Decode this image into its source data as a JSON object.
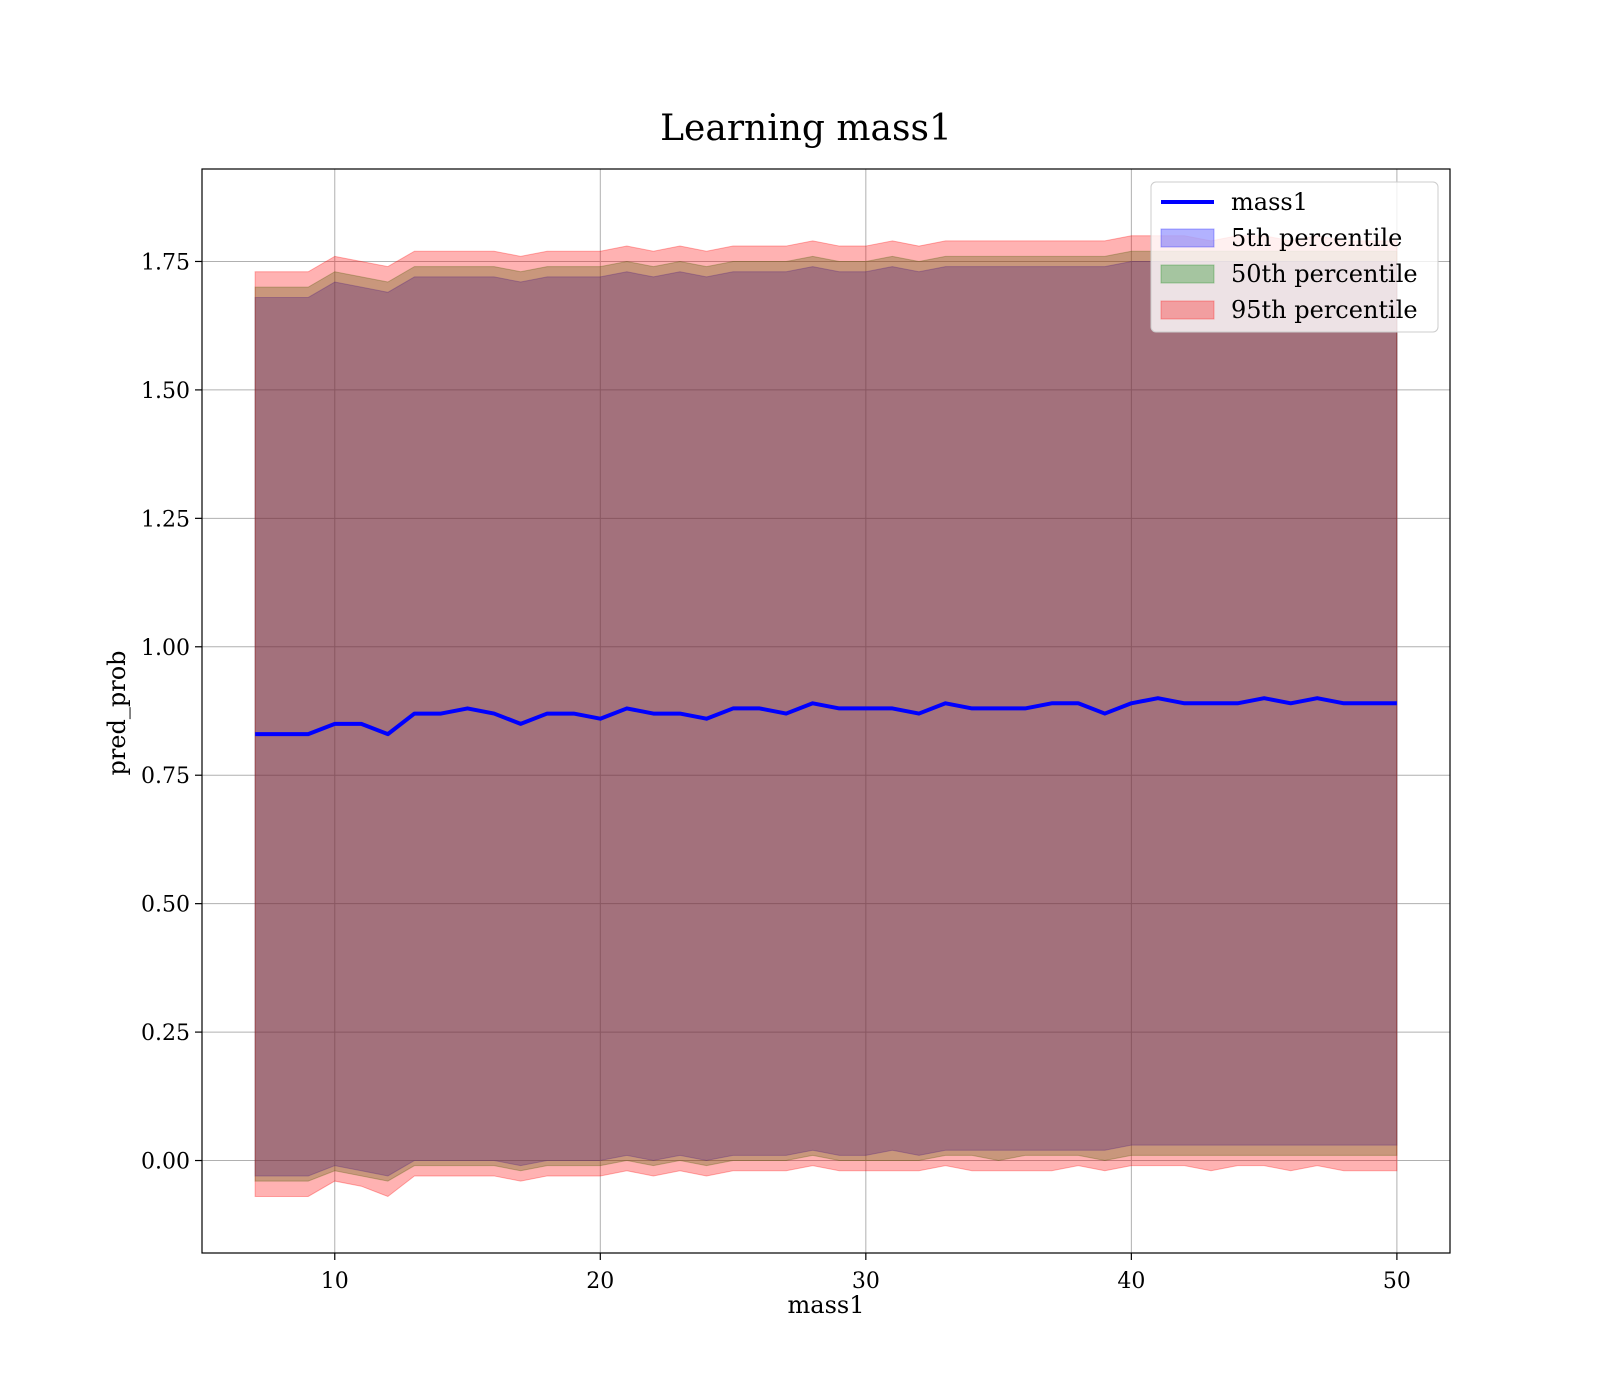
{
  "chart_data": {
    "type": "area",
    "title": "Learning mass1",
    "xlabel": "mass1",
    "ylabel": "pred_prob",
    "xlim": [
      5,
      52
    ],
    "ylim": [
      -0.18,
      1.93
    ],
    "xticks": [
      10,
      20,
      30,
      40,
      50
    ],
    "yticks": [
      0.0,
      0.25,
      0.5,
      0.75,
      1.0,
      1.25,
      1.5,
      1.75
    ],
    "ytick_labels": [
      "0.00",
      "0.25",
      "0.50",
      "0.75",
      "1.00",
      "1.25",
      "1.50",
      "1.75"
    ],
    "grid": true,
    "legend_position": "top-right",
    "x": [
      7,
      8,
      9,
      10,
      11,
      12,
      13,
      14,
      15,
      16,
      17,
      18,
      19,
      20,
      21,
      22,
      23,
      24,
      25,
      26,
      27,
      28,
      29,
      30,
      31,
      32,
      33,
      34,
      35,
      36,
      37,
      38,
      39,
      40,
      41,
      42,
      43,
      44,
      45,
      46,
      47,
      48,
      49,
      50
    ],
    "series": [
      {
        "name": "mass1",
        "kind": "line",
        "color": "#0000ff",
        "values": [
          0.83,
          0.83,
          0.83,
          0.85,
          0.85,
          0.83,
          0.87,
          0.87,
          0.88,
          0.87,
          0.85,
          0.87,
          0.87,
          0.86,
          0.88,
          0.87,
          0.87,
          0.86,
          0.88,
          0.88,
          0.87,
          0.89,
          0.88,
          0.88,
          0.88,
          0.87,
          0.89,
          0.88,
          0.88,
          0.88,
          0.89,
          0.89,
          0.87,
          0.89,
          0.9,
          0.89,
          0.89,
          0.89,
          0.9,
          0.89,
          0.9,
          0.89,
          0.89,
          0.89
        ]
      },
      {
        "name": "5th percentile",
        "kind": "band",
        "color": "#0000ff",
        "lower": [
          -0.03,
          -0.03,
          -0.03,
          -0.01,
          -0.02,
          -0.03,
          0.0,
          0.0,
          0.0,
          0.0,
          -0.01,
          0.0,
          0.0,
          0.0,
          0.01,
          0.0,
          0.01,
          0.0,
          0.01,
          0.01,
          0.01,
          0.02,
          0.01,
          0.01,
          0.02,
          0.01,
          0.02,
          0.02,
          0.02,
          0.02,
          0.02,
          0.02,
          0.02,
          0.03,
          0.03,
          0.03,
          0.03,
          0.03,
          0.03,
          0.03,
          0.03,
          0.03,
          0.03,
          0.03
        ],
        "upper": [
          1.68,
          1.68,
          1.68,
          1.71,
          1.7,
          1.69,
          1.72,
          1.72,
          1.72,
          1.72,
          1.71,
          1.72,
          1.72,
          1.72,
          1.73,
          1.72,
          1.73,
          1.72,
          1.73,
          1.73,
          1.73,
          1.74,
          1.73,
          1.73,
          1.74,
          1.73,
          1.74,
          1.74,
          1.74,
          1.74,
          1.74,
          1.74,
          1.74,
          1.75,
          1.75,
          1.75,
          1.75,
          1.75,
          1.75,
          1.75,
          1.75,
          1.75,
          1.75,
          1.75
        ]
      },
      {
        "name": "50th percentile",
        "kind": "band",
        "color": "#008000",
        "lower": [
          -0.04,
          -0.04,
          -0.04,
          -0.02,
          -0.03,
          -0.04,
          -0.01,
          -0.01,
          -0.01,
          -0.01,
          -0.02,
          -0.01,
          -0.01,
          -0.01,
          0.0,
          -0.01,
          0.0,
          -0.01,
          0.0,
          0.0,
          0.0,
          0.01,
          0.0,
          0.0,
          0.0,
          0.0,
          0.01,
          0.01,
          0.0,
          0.01,
          0.01,
          0.01,
          0.0,
          0.01,
          0.01,
          0.01,
          0.01,
          0.01,
          0.01,
          0.01,
          0.01,
          0.01,
          0.01,
          0.01
        ],
        "upper": [
          1.7,
          1.7,
          1.7,
          1.73,
          1.72,
          1.71,
          1.74,
          1.74,
          1.74,
          1.74,
          1.73,
          1.74,
          1.74,
          1.74,
          1.75,
          1.74,
          1.75,
          1.74,
          1.75,
          1.75,
          1.75,
          1.76,
          1.75,
          1.75,
          1.76,
          1.75,
          1.76,
          1.76,
          1.76,
          1.76,
          1.76,
          1.76,
          1.76,
          1.77,
          1.77,
          1.77,
          1.77,
          1.77,
          1.77,
          1.77,
          1.77,
          1.77,
          1.77,
          1.77
        ]
      },
      {
        "name": "95th percentile",
        "kind": "band",
        "color": "#ff0000",
        "lower": [
          -0.07,
          -0.07,
          -0.07,
          -0.04,
          -0.05,
          -0.07,
          -0.03,
          -0.03,
          -0.03,
          -0.03,
          -0.04,
          -0.03,
          -0.03,
          -0.03,
          -0.02,
          -0.03,
          -0.02,
          -0.03,
          -0.02,
          -0.02,
          -0.02,
          -0.01,
          -0.02,
          -0.02,
          -0.02,
          -0.02,
          -0.01,
          -0.02,
          -0.02,
          -0.02,
          -0.02,
          -0.01,
          -0.02,
          -0.01,
          -0.01,
          -0.01,
          -0.02,
          -0.01,
          -0.01,
          -0.02,
          -0.01,
          -0.02,
          -0.02,
          -0.02
        ],
        "upper": [
          1.73,
          1.73,
          1.73,
          1.76,
          1.75,
          1.74,
          1.77,
          1.77,
          1.77,
          1.77,
          1.76,
          1.77,
          1.77,
          1.77,
          1.78,
          1.77,
          1.78,
          1.77,
          1.78,
          1.78,
          1.78,
          1.79,
          1.78,
          1.78,
          1.79,
          1.78,
          1.79,
          1.79,
          1.79,
          1.79,
          1.79,
          1.79,
          1.79,
          1.8,
          1.8,
          1.8,
          1.79,
          1.8,
          1.8,
          1.79,
          1.8,
          1.79,
          1.79,
          1.79
        ]
      }
    ]
  }
}
